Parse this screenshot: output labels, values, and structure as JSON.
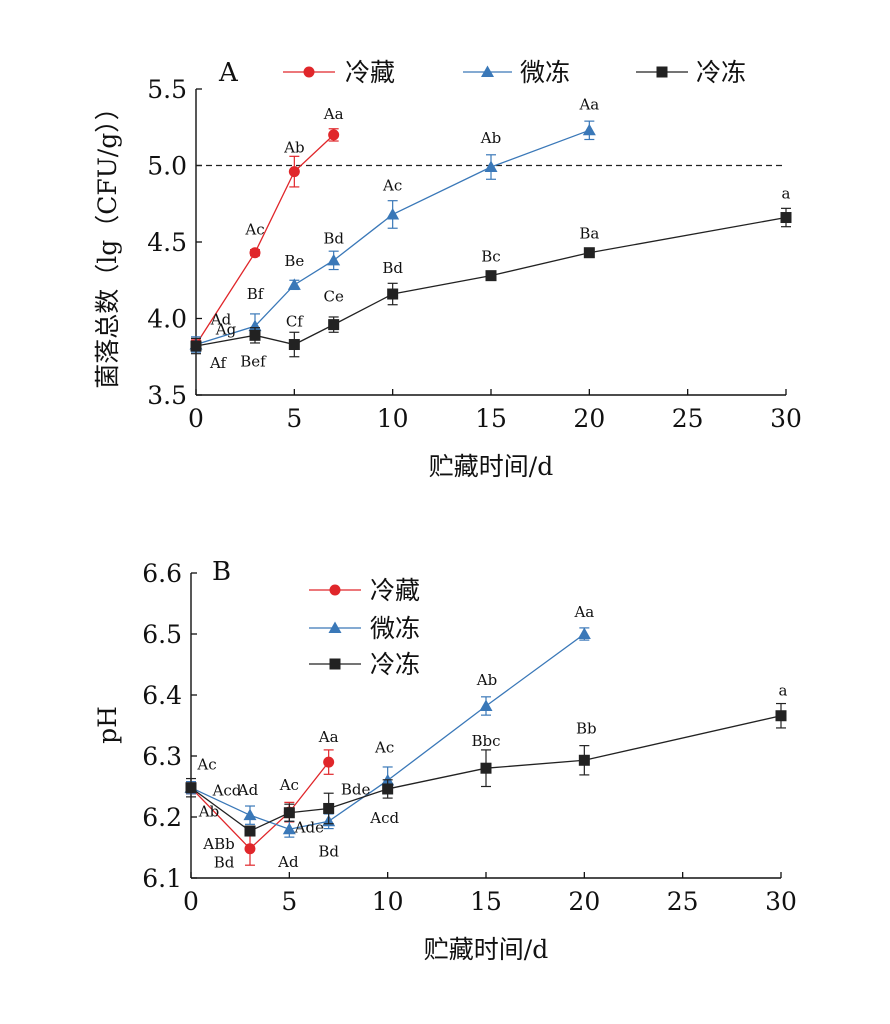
{
  "chart_data": [
    {
      "type": "line",
      "panel_label": "A",
      "xlabel": "贮藏时间/d",
      "ylabel": "菌落总数（lg（CFU/g））",
      "xlim": [
        0,
        30
      ],
      "ylim": [
        3.5,
        5.5
      ],
      "xticks": [
        0,
        5,
        10,
        15,
        20,
        25,
        30
      ],
      "yticks": [
        "3.5",
        "4.0",
        "4.5",
        "5.0",
        "5.5"
      ],
      "reference_line": {
        "y": 5.0,
        "style": "dashed"
      },
      "legend_position": "top",
      "series": [
        {
          "name": "冷藏",
          "color": "#e0262a",
          "marker": "circle",
          "x": [
            0,
            3,
            5,
            7
          ],
          "y": [
            3.83,
            4.43,
            4.96,
            5.2
          ],
          "err": [
            0.03,
            0.02,
            0.1,
            0.04
          ],
          "labels": [
            "Ad",
            "Ac",
            "Ab",
            "Aa"
          ]
        },
        {
          "name": "微冻",
          "color": "#3a78b8",
          "marker": "triangle",
          "x": [
            0,
            3,
            5,
            7,
            10,
            15,
            20
          ],
          "y": [
            3.83,
            3.95,
            4.22,
            4.38,
            4.68,
            4.99,
            5.23
          ],
          "err": [
            0.05,
            0.08,
            0.03,
            0.06,
            0.09,
            0.08,
            0.06
          ],
          "labels": [
            "Ag",
            "Bf",
            "Be",
            "Bd",
            "Ac",
            "Ab",
            "Aa"
          ]
        },
        {
          "name": "冷冻",
          "color": "#222222",
          "marker": "square",
          "x": [
            0,
            3,
            5,
            7,
            10,
            15,
            20,
            30
          ],
          "y": [
            3.82,
            3.89,
            3.83,
            3.96,
            4.16,
            4.28,
            4.43,
            4.66
          ],
          "err": [
            0.05,
            0.05,
            0.08,
            0.05,
            0.07,
            0.02,
            0.02,
            0.06
          ],
          "labels": [
            "Af",
            "Bef",
            "Cf",
            "Ce",
            "Bd",
            "Bc",
            "Ba",
            "a"
          ]
        }
      ]
    },
    {
      "type": "line",
      "panel_label": "B",
      "xlabel": "贮藏时间/d",
      "ylabel": "pH",
      "xlim": [
        0,
        30
      ],
      "ylim": [
        6.1,
        6.6
      ],
      "xticks": [
        0,
        5,
        10,
        15,
        20,
        25,
        30
      ],
      "yticks": [
        "6.1",
        "6.2",
        "6.3",
        "6.4",
        "6.5",
        "6.6"
      ],
      "legend_position": "top-left",
      "series": [
        {
          "name": "冷藏",
          "color": "#e0262a",
          "marker": "circle",
          "x": [
            0,
            3,
            5,
            7
          ],
          "y": [
            6.248,
            6.148,
            6.208,
            6.29
          ],
          "err": [
            0.01,
            0.027,
            0.016,
            0.02
          ],
          "labels": [
            "Ab",
            "Bd",
            "Ac",
            "Aa"
          ]
        },
        {
          "name": "微冻",
          "color": "#3a78b8",
          "marker": "triangle",
          "x": [
            0,
            3,
            5,
            7,
            10,
            15,
            20
          ],
          "y": [
            6.248,
            6.203,
            6.18,
            6.193,
            6.26,
            6.382,
            6.5
          ],
          "err": [
            0.01,
            0.015,
            0.013,
            0.012,
            0.022,
            0.015,
            0.01
          ],
          "labels": [
            "Ac",
            "Ad",
            "Ad",
            "Bd",
            "Ac",
            "Ab",
            "Aa"
          ]
        },
        {
          "name": "冷冻",
          "color": "#222222",
          "marker": "square",
          "x": [
            0,
            3,
            5,
            7,
            10,
            15,
            20,
            30
          ],
          "y": [
            6.248,
            6.177,
            6.207,
            6.214,
            6.246,
            6.28,
            6.293,
            6.366
          ],
          "err": [
            0.015,
            0.008,
            0.014,
            0.025,
            0.015,
            0.03,
            0.024,
            0.02
          ],
          "labels": [
            "Acd",
            "ABb",
            "Ade",
            "Bde",
            "Acd",
            "Bbc",
            "Bb",
            "a"
          ]
        }
      ]
    }
  ]
}
